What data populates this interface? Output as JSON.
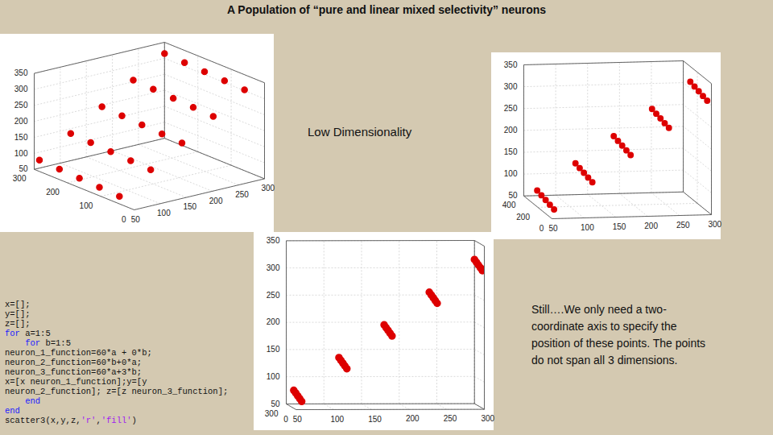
{
  "title": "A Population of “pure and linear mixed selectivity” neurons",
  "label": "Low Dimensionality",
  "annotation": "Still….We only need a two-coordinate axis to specify the position of these points. The points do not span all 3 dimensions.",
  "code": [
    "x=[];",
    "y=[];",
    "z=[];",
    "for a=1:5",
    "    for b=1:5",
    "neuron_1_function=60*a + 0*b;",
    "neuron_2_function=60*b+0*a;",
    "neuron_3_function=60*a+3*b;",
    "x=[x neuron_1_function];y=[y",
    "neuron_2_function]; z=[z neuron_3_function];",
    "    end",
    "end",
    "scatter3(x,y,z,'r','fill')"
  ],
  "chart_data": [
    {
      "type": "scatter3d",
      "color": "#dd0000",
      "grid": true,
      "x": [
        60,
        60,
        60,
        60,
        60,
        120,
        120,
        120,
        120,
        120,
        180,
        180,
        180,
        180,
        180,
        240,
        240,
        240,
        240,
        240,
        300,
        300,
        300,
        300,
        300
      ],
      "y": [
        60,
        120,
        180,
        240,
        300,
        60,
        120,
        180,
        240,
        300,
        60,
        120,
        180,
        240,
        300,
        60,
        120,
        180,
        240,
        300,
        60,
        120,
        180,
        240,
        300
      ],
      "z": [
        63,
        66,
        69,
        72,
        75,
        123,
        126,
        129,
        132,
        135,
        183,
        186,
        189,
        192,
        195,
        243,
        246,
        249,
        252,
        255,
        303,
        306,
        309,
        312,
        315
      ],
      "xlim": [
        50,
        300
      ],
      "ylim": [
        0,
        300
      ],
      "zlim": [
        50,
        350
      ],
      "xticks": [
        50,
        100,
        150,
        200,
        250,
        300
      ],
      "yticks": [
        0,
        100,
        200,
        300
      ],
      "zticks": [
        50,
        100,
        150,
        200,
        250,
        300,
        350
      ]
    },
    {
      "type": "scatter3d",
      "color": "#dd0000",
      "grid": true,
      "x": [
        60,
        60,
        60,
        60,
        60,
        120,
        120,
        120,
        120,
        120,
        180,
        180,
        180,
        180,
        180,
        240,
        240,
        240,
        240,
        240,
        300,
        300,
        300,
        300,
        300
      ],
      "y": [
        60,
        120,
        180,
        240,
        300,
        60,
        120,
        180,
        240,
        300,
        60,
        120,
        180,
        240,
        300,
        60,
        120,
        180,
        240,
        300,
        60,
        120,
        180,
        240,
        300
      ],
      "z": [
        63,
        66,
        69,
        72,
        75,
        123,
        126,
        129,
        132,
        135,
        183,
        186,
        189,
        192,
        195,
        243,
        246,
        249,
        252,
        255,
        303,
        306,
        309,
        312,
        315
      ],
      "xlim": [
        50,
        300
      ],
      "ylim": [
        0,
        400
      ],
      "zlim": [
        50,
        350
      ],
      "xticks": [
        50,
        100,
        150,
        200,
        250,
        300
      ],
      "yticks": [
        0,
        200,
        400
      ],
      "zticks": [
        50,
        100,
        150,
        200,
        250,
        300,
        350
      ]
    },
    {
      "type": "scatter3d",
      "color": "#dd0000",
      "grid": true,
      "x": [
        60,
        60,
        60,
        60,
        60,
        120,
        120,
        120,
        120,
        120,
        180,
        180,
        180,
        180,
        180,
        240,
        240,
        240,
        240,
        240,
        300,
        300,
        300,
        300,
        300
      ],
      "y": [
        60,
        120,
        180,
        240,
        300,
        60,
        120,
        180,
        240,
        300,
        60,
        120,
        180,
        240,
        300,
        60,
        120,
        180,
        240,
        300,
        60,
        120,
        180,
        240,
        300
      ],
      "z": [
        63,
        66,
        69,
        72,
        75,
        123,
        126,
        129,
        132,
        135,
        183,
        186,
        189,
        192,
        195,
        243,
        246,
        249,
        252,
        255,
        303,
        306,
        309,
        312,
        315
      ],
      "xlim": [
        50,
        300
      ],
      "ylim": [
        0,
        300
      ],
      "zlim": [
        50,
        350
      ],
      "xticks": [
        50,
        100,
        150,
        200,
        250,
        300
      ],
      "yticks": [
        0,
        300
      ],
      "zticks": [
        50,
        100,
        150,
        200,
        250,
        300,
        350
      ]
    }
  ]
}
